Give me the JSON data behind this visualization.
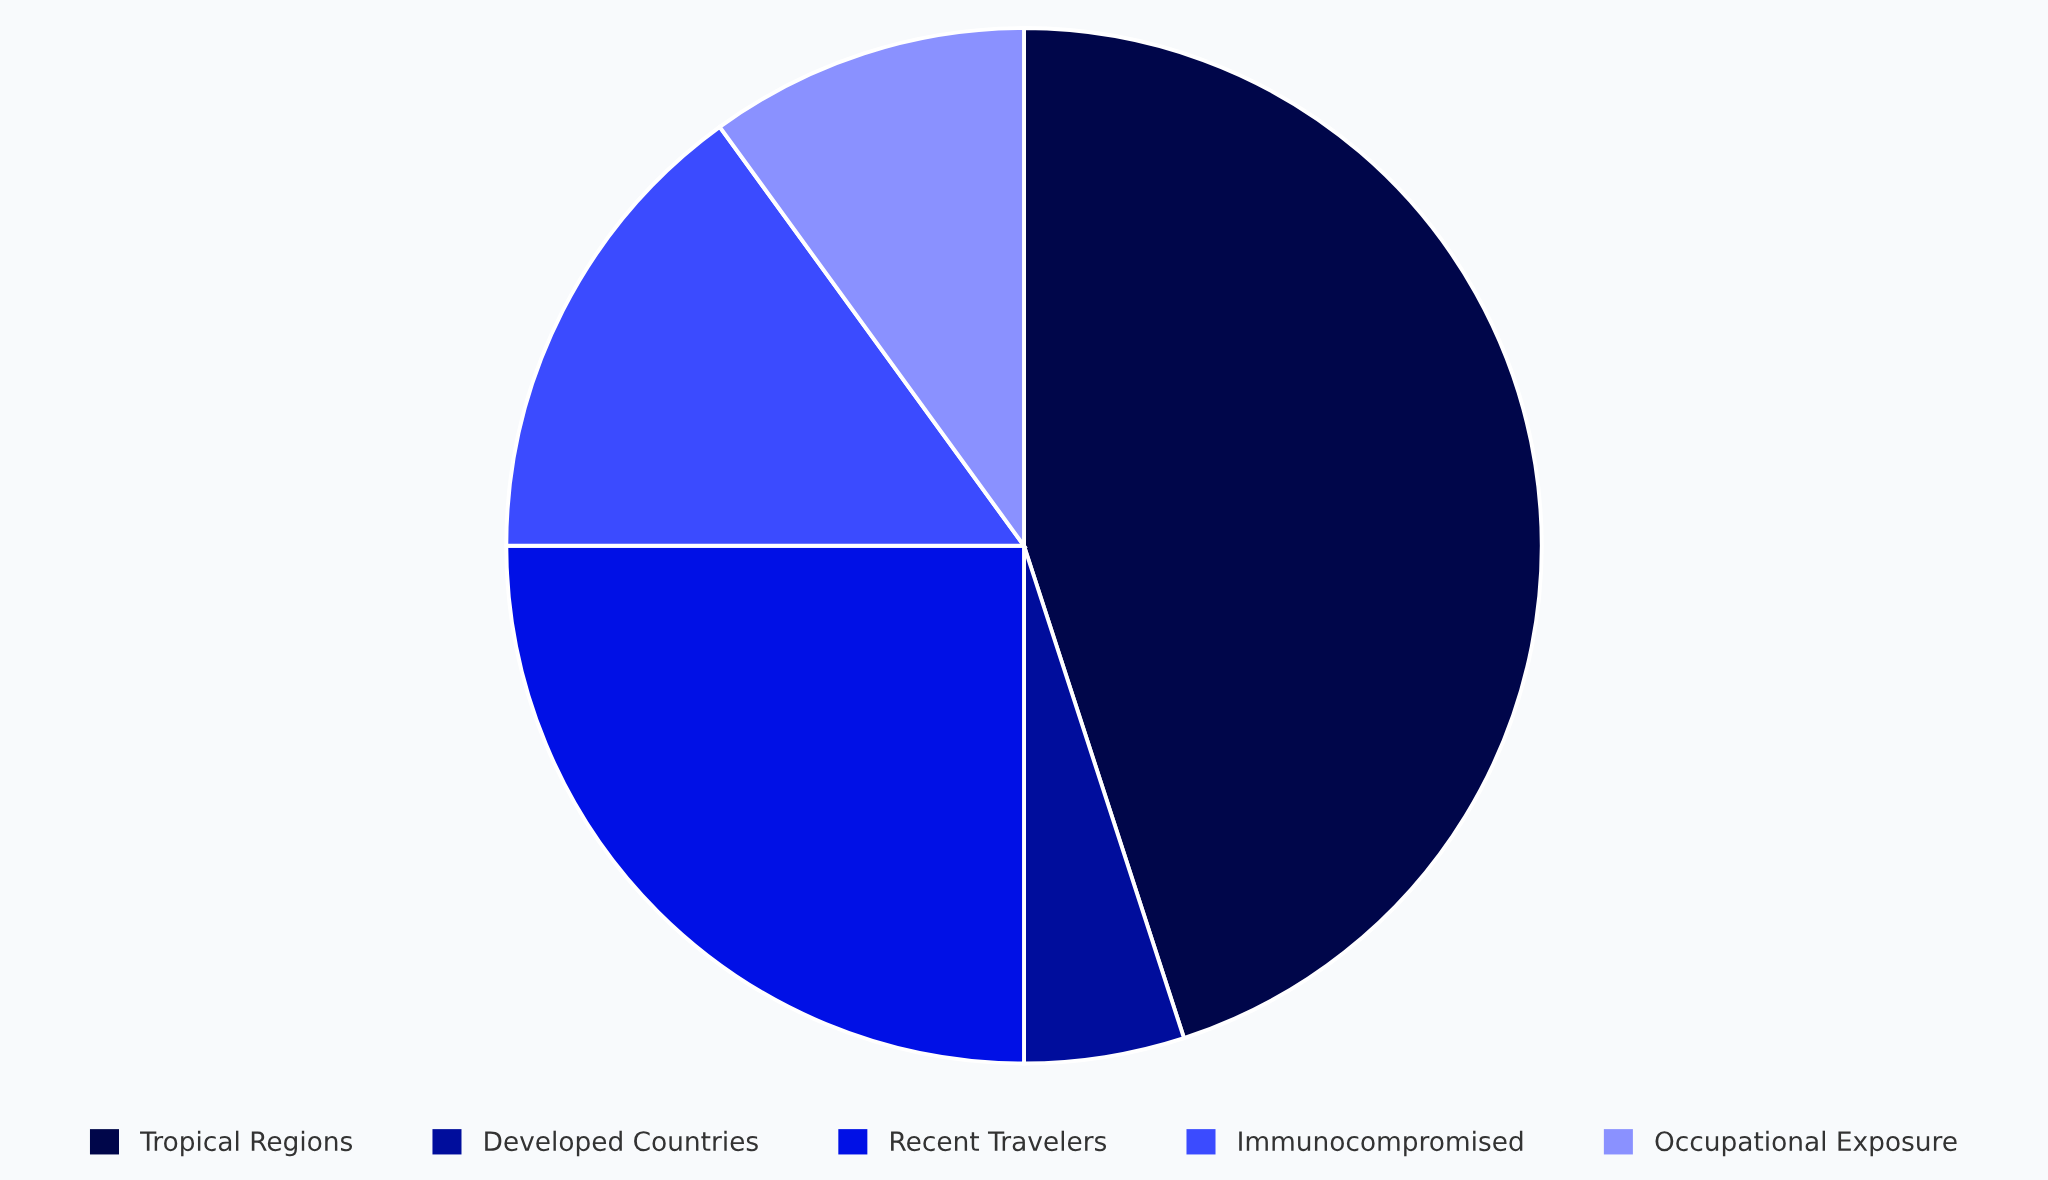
{
  "chart_data": {
    "type": "pie",
    "categories": [
      "Tropical Regions",
      "Developed Countries",
      "Recent Travelers",
      "Immunocompromised",
      "Occupational Exposure"
    ],
    "values": [
      45,
      5,
      25,
      15,
      10
    ],
    "colors": [
      "#00064a",
      "#000d9c",
      "#0010e6",
      "#3b4bff",
      "#8a91ff"
    ],
    "legend": "bottom"
  }
}
